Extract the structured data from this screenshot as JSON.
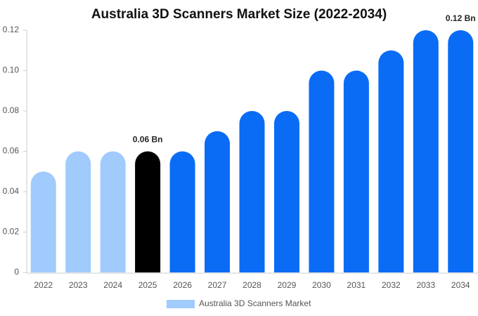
{
  "chart_data": {
    "type": "bar",
    "title": "Australia 3D Scanners Market Size (2022-2034)",
    "categories": [
      "2022",
      "2023",
      "2024",
      "2025",
      "2026",
      "2027",
      "2028",
      "2029",
      "2030",
      "2031",
      "2032",
      "2033",
      "2034"
    ],
    "series": [
      {
        "name": "Australia 3D Scanners Market",
        "color": "#a0cbfc",
        "colors": [
          "#a0cbfc",
          "#a0cbfc",
          "#a0cbfc",
          "#000000",
          "#0a6cf5",
          "#0a6cf5",
          "#0a6cf5",
          "#0a6cf5",
          "#0a6cf5",
          "#0a6cf5",
          "#0a6cf5",
          "#0a6cf5",
          "#0a6cf5"
        ],
        "values": [
          0.05,
          0.06,
          0.06,
          0.06,
          0.06,
          0.07,
          0.08,
          0.08,
          0.1,
          0.1,
          0.11,
          0.12,
          0.12
        ],
        "value_labels": [
          null,
          null,
          null,
          "0.06 Bn",
          null,
          null,
          null,
          null,
          null,
          null,
          null,
          null,
          "0.12 Bn"
        ]
      }
    ],
    "ylim": [
      0,
      0.12
    ],
    "yticks": [
      0,
      0.02,
      0.04,
      0.06,
      0.08,
      {
        "value": 0.1,
        "label": "0.10"
      },
      0.12
    ],
    "grid": false
  }
}
